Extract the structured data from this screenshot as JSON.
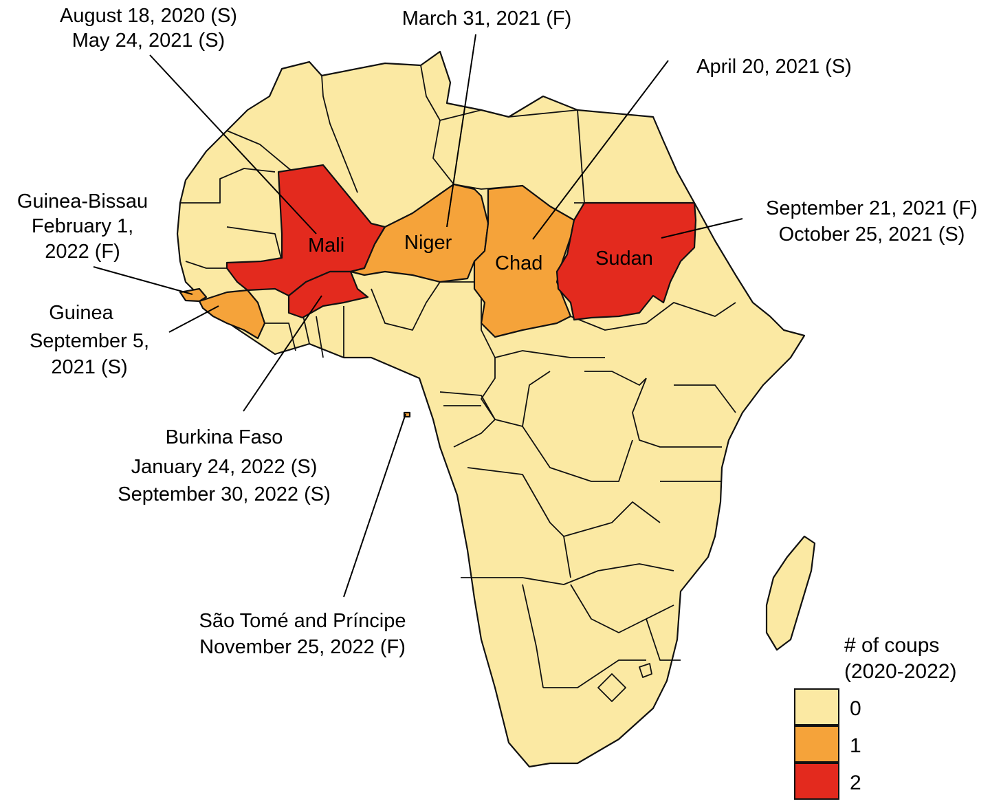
{
  "colors": {
    "c0": "#fbe9a3",
    "c1": "#f5a33a",
    "c2": "#e32a1e"
  },
  "countries": [
    {
      "name": "Mali",
      "coups": 2
    },
    {
      "name": "Niger",
      "coups": 1
    },
    {
      "name": "Chad",
      "coups": 1
    },
    {
      "name": "Sudan",
      "coups": 2
    },
    {
      "name": "Burkina Faso",
      "coups": 2
    },
    {
      "name": "Guinea",
      "coups": 1
    },
    {
      "name": "Guinea-Bissau",
      "coups": 1
    },
    {
      "name": "São Tomé and Príncipe",
      "coups": 1
    }
  ],
  "labels": {
    "mali": "Mali",
    "niger": "Niger",
    "chad": "Chad",
    "sudan": "Sudan"
  },
  "annotations": {
    "mali": [
      "August 18, 2020 (S)",
      "May 24, 2021 (S)"
    ],
    "niger": [
      "March 31, 2021 (F)"
    ],
    "chad": [
      "April 20, 2021 (S)"
    ],
    "sudan": [
      "September 21, 2021 (F)",
      "October 25, 2021 (S)"
    ],
    "guinea_bissau": [
      "Guinea-Bissau",
      "February 1,",
      "2022 (F)"
    ],
    "guinea": [
      "Guinea",
      "September 5,",
      "2021 (S)"
    ],
    "burkina": [
      "Burkina Faso",
      "January 24, 2022 (S)",
      "September 30, 2022 (S)"
    ],
    "sao_tome": [
      "São Tomé and Príncipe",
      "November 25, 2022 (F)"
    ]
  },
  "legend": {
    "title_line1": "# of coups",
    "title_line2": "(2020-2022)",
    "items": [
      {
        "label": "0",
        "color": "#fbe9a3"
      },
      {
        "label": "1",
        "color": "#f5a33a"
      },
      {
        "label": "2",
        "color": "#e32a1e"
      }
    ]
  }
}
